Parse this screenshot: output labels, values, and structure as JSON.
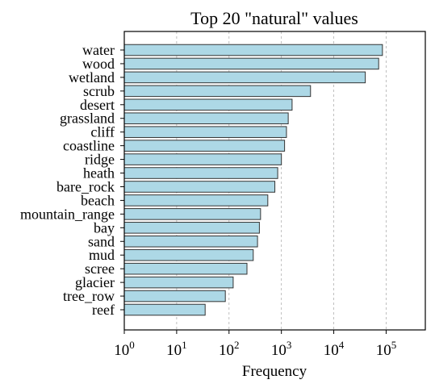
{
  "chart_data": {
    "type": "bar",
    "orientation": "horizontal",
    "title": "Top 20 \"natural\" values",
    "xlabel": "Frequency",
    "ylabel": "",
    "x_scale": "log",
    "xlim": [
      1,
      560000
    ],
    "x_ticks": [
      {
        "base": "10",
        "exp": "0"
      },
      {
        "base": "10",
        "exp": "1"
      },
      {
        "base": "10",
        "exp": "2"
      },
      {
        "base": "10",
        "exp": "3"
      },
      {
        "base": "10",
        "exp": "4"
      },
      {
        "base": "10",
        "exp": "5"
      }
    ],
    "grid": "x-major-dashed",
    "categories": [
      "water",
      "wood",
      "wetland",
      "scrub",
      "desert",
      "grassland",
      "cliff",
      "coastline",
      "ridge",
      "heath",
      "bare_rock",
      "beach",
      "mountain_range",
      "bay",
      "sand",
      "mud",
      "scree",
      "glacier",
      "tree_row",
      "reef"
    ],
    "values": [
      85000,
      72000,
      40000,
      3600,
      1600,
      1350,
      1250,
      1150,
      1000,
      850,
      750,
      550,
      400,
      380,
      350,
      290,
      220,
      120,
      85,
      35
    ],
    "bar_color": "#add8e6",
    "bar_edge_color": "#333333"
  }
}
